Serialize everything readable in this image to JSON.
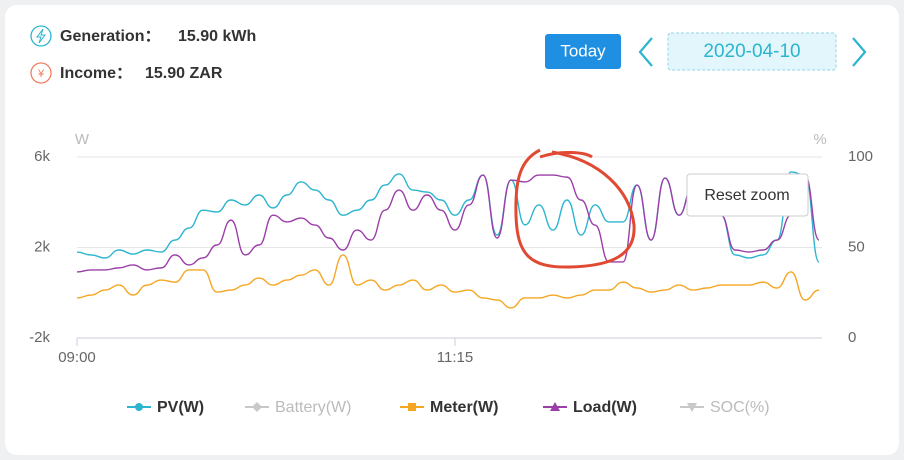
{
  "header": {
    "generation_label": "Generation：",
    "generation_value": "15.90 kWh",
    "income_label": "Income：",
    "income_value": "15.90 ZAR",
    "today_button": "Today",
    "date": "2020-04-10"
  },
  "reset_zoom": "Reset zoom",
  "chart_data": {
    "type": "line",
    "y_unit": "W",
    "y2_unit": "%",
    "x": [
      "09:00",
      "09:05",
      "09:10",
      "09:15",
      "09:20",
      "09:25",
      "09:30",
      "09:35",
      "09:40",
      "09:45",
      "09:50",
      "09:55",
      "10:00",
      "10:05",
      "10:10",
      "10:15",
      "10:20",
      "10:25",
      "10:30",
      "10:35",
      "10:40",
      "10:45",
      "10:50",
      "10:55",
      "11:00",
      "11:05",
      "11:10",
      "11:15",
      "11:20",
      "11:25",
      "11:30",
      "11:35",
      "11:40",
      "11:45",
      "11:50",
      "11:55",
      "12:00",
      "12:05",
      "12:10",
      "12:15",
      "12:20",
      "12:25",
      "12:30",
      "12:35",
      "12:40",
      "12:45",
      "12:50",
      "12:55",
      "13:00",
      "13:05",
      "13:10",
      "13:15",
      "13:20",
      "13:25"
    ],
    "xticks": [
      "09:00",
      "11:15"
    ],
    "ylim": [
      -2000,
      6000
    ],
    "yticks": [
      {
        "value": -2000,
        "label": "-2k"
      },
      {
        "value": 2000,
        "label": "2k"
      },
      {
        "value": 6000,
        "label": "6k"
      }
    ],
    "y2lim": [
      0,
      100
    ],
    "y2ticks": [
      0,
      50,
      100
    ],
    "grid": true,
    "series": [
      {
        "name": "PV(W)",
        "color": "#2bb5cf",
        "marker": "circle",
        "visible": true,
        "values": [
          1800,
          1670,
          1540,
          1890,
          1710,
          1890,
          1800,
          2330,
          2860,
          3650,
          3570,
          4100,
          3880,
          4320,
          3750,
          4320,
          4900,
          4540,
          4100,
          3430,
          3650,
          4100,
          4760,
          5250,
          4540,
          4450,
          4100,
          3430,
          4100,
          5200,
          2550,
          4980,
          3000,
          3880,
          2770,
          4100,
          2550,
          3880,
          3130,
          3130,
          4760,
          2330,
          5070,
          3430,
          4760,
          4980,
          3430,
          1670,
          1540,
          1670,
          2330,
          5340,
          5200,
          1360
        ]
      },
      {
        "name": "Battery(W)",
        "color": "#c8c8c8",
        "marker": "diamond",
        "visible": false
      },
      {
        "name": "Meter(W)",
        "color": "#f5a623",
        "marker": "square",
        "visible": true,
        "values": [
          -230,
          -100,
          120,
          340,
          -100,
          340,
          560,
          470,
          1010,
          1010,
          30,
          120,
          340,
          650,
          340,
          560,
          780,
          1010,
          340,
          1670,
          340,
          560,
          120,
          340,
          560,
          120,
          340,
          30,
          120,
          -230,
          -320,
          -670,
          -230,
          -230,
          -100,
          -230,
          -100,
          120,
          120,
          470,
          210,
          30,
          120,
          340,
          120,
          210,
          340,
          340,
          340,
          470,
          210,
          920,
          -320,
          120
        ]
      },
      {
        "name": "Load(W)",
        "color": "#9b3ea8",
        "marker": "triangle",
        "visible": true,
        "values": [
          920,
          1010,
          1010,
          1100,
          1230,
          1010,
          1100,
          1670,
          1230,
          1540,
          2110,
          3210,
          1670,
          2110,
          3430,
          3130,
          3300,
          2990,
          2420,
          1890,
          2770,
          2330,
          3650,
          4540,
          3650,
          4320,
          3650,
          2770,
          3880,
          5200,
          2420,
          4980,
          4900,
          5200,
          5200,
          5110,
          4100,
          2990,
          1360,
          1360,
          4760,
          2330,
          5070,
          3430,
          4760,
          4980,
          3430,
          1890,
          1800,
          1890,
          2330,
          3430,
          5200,
          2330
        ]
      },
      {
        "name": "SOC(%)",
        "color": "#c8c8c8",
        "marker": "triangle-down",
        "visible": false
      }
    ]
  }
}
